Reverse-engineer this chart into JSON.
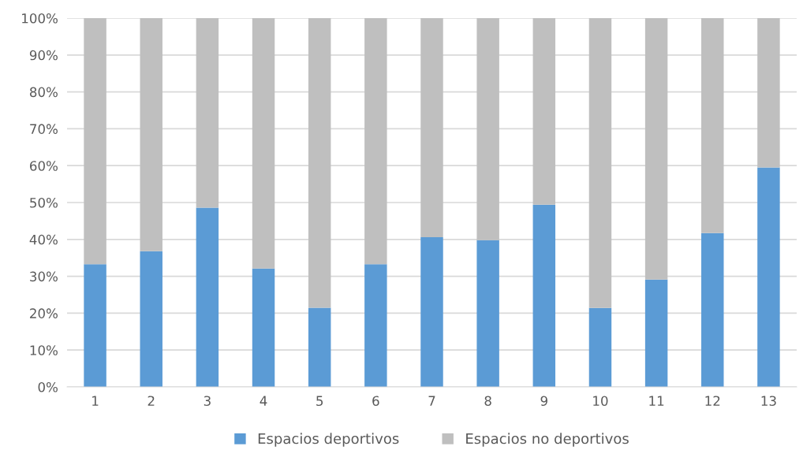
{
  "chart_data": {
    "type": "bar",
    "stacked": true,
    "categories": [
      "1",
      "2",
      "3",
      "4",
      "5",
      "6",
      "7",
      "8",
      "9",
      "10",
      "11",
      "12",
      "13"
    ],
    "series": [
      {
        "name": "Espacios deportivos",
        "color": "#5b9bd5",
        "values": [
          33.3,
          36.8,
          48.6,
          32.1,
          21.5,
          33.3,
          40.6,
          39.8,
          49.4,
          21.4,
          29.1,
          41.7,
          59.5
        ]
      },
      {
        "name": "Espacios no deportivos",
        "color": "#bfbfbf",
        "values": [
          66.7,
          63.2,
          51.4,
          67.9,
          78.5,
          66.7,
          59.4,
          60.2,
          50.6,
          78.6,
          70.9,
          58.3,
          40.5
        ]
      }
    ],
    "ylim": [
      0,
      100
    ],
    "yticks": [
      {
        "value": 0,
        "label": "0%"
      },
      {
        "value": 10,
        "label": "10%"
      },
      {
        "value": 20,
        "label": "20%"
      },
      {
        "value": 30,
        "label": "30%"
      },
      {
        "value": 40,
        "label": "40%"
      },
      {
        "value": 50,
        "label": "50%"
      },
      {
        "value": 60,
        "label": "60%"
      },
      {
        "value": 70,
        "label": "70%"
      },
      {
        "value": 80,
        "label": "80%"
      },
      {
        "value": 90,
        "label": "90%"
      },
      {
        "value": 100,
        "label": "100%"
      }
    ],
    "grid": "y",
    "legend": "bottom"
  }
}
